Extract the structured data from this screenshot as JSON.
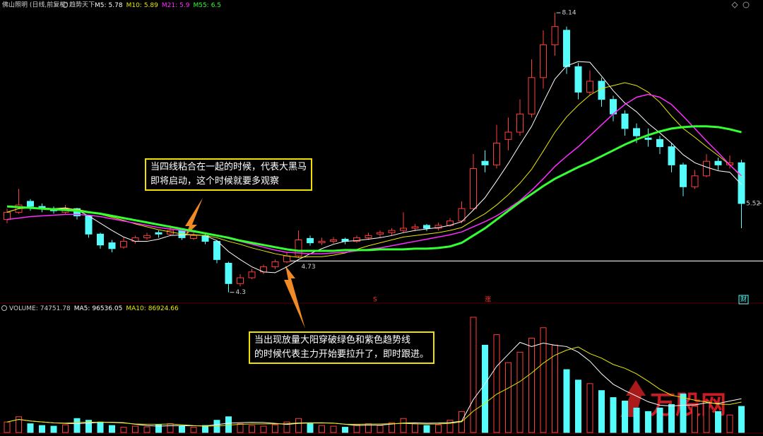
{
  "chart_data": [
    {
      "type": "candlestick",
      "title": "佛山照明 (日线,前复权)",
      "subtitle": "趋势天下",
      "ylim": [
        4.19,
        8.17
      ],
      "up_color": "#ff3c3c",
      "down_color": "#54fcfc",
      "hline": 4.73,
      "hline_color": "#bbbbbb",
      "open": [
        5.3,
        5.4,
        5.55,
        5.48,
        5.45,
        5.4,
        5.45,
        5.35,
        5.1,
        4.98,
        4.92,
        5.0,
        5.05,
        5.12,
        5.1,
        5.15,
        5.04,
        5.08,
        5.0,
        4.7,
        4.42,
        4.5,
        4.58,
        4.65,
        4.72,
        4.8,
        5.04,
        4.98,
        5.0,
        5.03,
        5.0,
        5.05,
        5.1,
        5.12,
        5.15,
        5.18,
        5.22,
        5.18,
        5.22,
        5.28,
        5.45,
        6.1,
        6.05,
        6.4,
        6.5,
        6.75,
        7.25,
        7.7,
        7.9,
        7.4,
        7.05,
        7.2,
        6.95,
        6.75,
        6.55,
        6.42,
        6.4,
        6.3,
        6.05,
        5.75,
        5.9,
        6.1,
        6.05,
        6.08
      ],
      "high": [
        5.45,
        5.72,
        5.58,
        5.52,
        5.48,
        5.5,
        5.46,
        5.36,
        5.12,
        5.02,
        5.05,
        5.08,
        5.12,
        5.15,
        5.22,
        5.17,
        5.12,
        5.1,
        5.02,
        4.72,
        4.55,
        4.62,
        4.68,
        4.75,
        4.85,
        5.15,
        5.08,
        5.05,
        5.06,
        5.05,
        5.08,
        5.12,
        5.15,
        5.18,
        5.4,
        5.24,
        5.24,
        5.26,
        5.32,
        5.55,
        6.2,
        6.25,
        6.6,
        6.7,
        6.95,
        7.5,
        7.9,
        8.14,
        7.95,
        7.45,
        7.35,
        7.25,
        7.0,
        6.8,
        6.62,
        6.55,
        6.45,
        6.35,
        6.08,
        5.98,
        6.2,
        6.15,
        6.18,
        6.12
      ],
      "low": [
        5.25,
        5.38,
        5.42,
        5.4,
        5.38,
        5.38,
        5.3,
        5.05,
        4.9,
        4.85,
        4.9,
        4.97,
        5.02,
        5.05,
        5.08,
        5.02,
        5.02,
        4.96,
        4.7,
        4.3,
        4.38,
        4.48,
        4.55,
        4.62,
        4.7,
        4.78,
        4.94,
        4.95,
        4.97,
        4.96,
        4.98,
        5.02,
        5.05,
        5.08,
        5.12,
        5.14,
        5.14,
        5.15,
        5.2,
        5.25,
        5.42,
        5.95,
        6.0,
        6.25,
        6.45,
        6.7,
        7.1,
        7.55,
        7.3,
        6.95,
        7.0,
        6.85,
        6.65,
        6.45,
        6.35,
        6.3,
        6.2,
        5.95,
        5.62,
        5.72,
        5.88,
        5.98,
        6.0,
        5.18
      ],
      "close": [
        5.4,
        5.5,
        5.48,
        5.45,
        5.42,
        5.45,
        5.35,
        5.1,
        4.95,
        4.9,
        5.0,
        5.05,
        5.08,
        5.1,
        5.15,
        5.05,
        5.08,
        5.0,
        4.75,
        4.42,
        4.5,
        4.58,
        4.65,
        4.72,
        4.8,
        5.02,
        4.98,
        5.0,
        5.02,
        5.0,
        5.05,
        5.08,
        5.12,
        5.15,
        5.18,
        5.2,
        5.18,
        5.22,
        5.28,
        5.45,
        6.0,
        6.05,
        6.35,
        6.5,
        6.75,
        7.25,
        7.7,
        7.95,
        7.4,
        7.05,
        7.2,
        6.95,
        6.75,
        6.55,
        6.45,
        6.4,
        6.3,
        6.05,
        5.75,
        5.9,
        6.1,
        6.05,
        6.08,
        5.52
      ],
      "lines": [
        {
          "name": "M5:",
          "current": 5.78,
          "color": "#ffffff",
          "width": 1,
          "values": [
            5.4,
            5.45,
            5.46,
            5.46,
            5.45,
            5.46,
            5.43,
            5.35,
            5.25,
            5.15,
            5.06,
            5.0,
            5.0,
            5.03,
            5.08,
            5.09,
            5.09,
            5.08,
            5.01,
            4.86,
            4.75,
            4.65,
            4.58,
            4.57,
            4.65,
            4.75,
            4.83,
            4.9,
            4.96,
            5.0,
            5.01,
            5.03,
            5.05,
            5.08,
            5.12,
            5.15,
            5.17,
            5.19,
            5.22,
            5.27,
            5.43,
            5.6,
            5.83,
            6.07,
            6.33,
            6.58,
            6.91,
            7.23,
            7.41,
            7.47,
            7.46,
            7.27,
            7.07,
            6.9,
            6.78,
            6.62,
            6.49,
            6.35,
            6.19,
            6.08,
            6.02,
            5.97,
            5.95,
            5.78
          ]
        },
        {
          "name": "M10:",
          "current": 5.89,
          "color": "#e8e800",
          "width": 1,
          "values": [
            5.4,
            5.45,
            5.46,
            5.46,
            5.45,
            5.45,
            5.44,
            5.41,
            5.37,
            5.33,
            5.29,
            5.24,
            5.2,
            5.16,
            5.13,
            5.1,
            5.09,
            5.08,
            5.05,
            5.0,
            4.96,
            4.91,
            4.87,
            4.83,
            4.8,
            4.78,
            4.79,
            4.79,
            4.81,
            4.84,
            4.89,
            4.94,
            4.98,
            5.02,
            5.06,
            5.08,
            5.1,
            5.12,
            5.15,
            5.19,
            5.29,
            5.38,
            5.5,
            5.64,
            5.8,
            5.99,
            6.24,
            6.5,
            6.71,
            6.87,
            7.01,
            7.1,
            7.14,
            7.18,
            7.14,
            7.05,
            6.91,
            6.72,
            6.55,
            6.43,
            6.3,
            6.18,
            6.05,
            5.89
          ]
        },
        {
          "name": "M21:",
          "current": 5.9,
          "color": "#ff2cff",
          "width": 1.5,
          "values": [
            5.3,
            5.32,
            5.34,
            5.35,
            5.36,
            5.37,
            5.37,
            5.36,
            5.34,
            5.31,
            5.28,
            5.25,
            5.22,
            5.19,
            5.17,
            5.15,
            5.13,
            5.11,
            5.08,
            5.04,
            5.0,
            4.96,
            4.92,
            4.88,
            4.85,
            4.84,
            4.83,
            4.83,
            4.84,
            4.85,
            4.87,
            4.89,
            4.91,
            4.94,
            4.97,
            5.0,
            5.03,
            5.06,
            5.09,
            5.13,
            5.2,
            5.27,
            5.35,
            5.45,
            5.56,
            5.7,
            5.86,
            6.03,
            6.17,
            6.3,
            6.45,
            6.6,
            6.75,
            6.88,
            6.98,
            7.02,
            6.98,
            6.88,
            6.72,
            6.55,
            6.38,
            6.22,
            6.05,
            5.9
          ]
        },
        {
          "name": "M55:",
          "current": 6.5,
          "color": "#33ff33",
          "width": 3,
          "values": [
            5.48,
            5.47,
            5.46,
            5.45,
            5.44,
            5.43,
            5.42,
            5.4,
            5.38,
            5.35,
            5.32,
            5.29,
            5.26,
            5.23,
            5.2,
            5.17,
            5.14,
            5.11,
            5.08,
            5.05,
            5.01,
            4.98,
            4.95,
            4.92,
            4.89,
            4.87,
            4.87,
            4.87,
            4.87,
            4.88,
            4.88,
            4.88,
            4.89,
            4.89,
            4.89,
            4.9,
            4.9,
            4.91,
            4.93,
            4.98,
            5.08,
            5.18,
            5.3,
            5.42,
            5.54,
            5.65,
            5.76,
            5.86,
            5.94,
            6.02,
            6.09,
            6.17,
            6.25,
            6.33,
            6.4,
            6.46,
            6.51,
            6.55,
            6.57,
            6.58,
            6.58,
            6.57,
            6.54,
            6.5
          ]
        }
      ],
      "events": [
        "S",
        "涨",
        "财"
      ],
      "annotations": [
        [
          "当四线粘合在一起的时候，代表大黑马",
          "即将启动，这个时候就要多观察"
        ],
        [
          "当出现放量大阳穿破绿色和紫色趋势线",
          "的时候代表主力开始要拉升了，即时跟进。"
        ]
      ],
      "watermark": "万股网"
    },
    {
      "type": "bar",
      "ylim": [
        0,
        342000
      ],
      "series": [
        {
          "name": "VOLUME:",
          "current": 74751.78,
          "values": [
            30000,
            45000,
            25000,
            20000,
            18000,
            22000,
            40000,
            35000,
            30000,
            20000,
            15000,
            18000,
            16000,
            22000,
            25000,
            18000,
            15000,
            20000,
            35000,
            45000,
            25000,
            20000,
            18000,
            22000,
            30000,
            40000,
            25000,
            20000,
            18000,
            15000,
            22000,
            25000,
            20000,
            28000,
            40000,
            25000,
            20000,
            22000,
            35000,
            60000,
            330000,
            250000,
            280000,
            200000,
            230000,
            270000,
            300000,
            250000,
            180000,
            150000,
            140000,
            120000,
            100000,
            90000,
            70000,
            60000,
            70000,
            80000,
            110000,
            75000,
            90000,
            60000,
            50000,
            74751.78
          ]
        }
      ],
      "lines": [
        {
          "name": "MA5:",
          "current": 96536.05,
          "color": "#ffffff",
          "width": 1,
          "values": [
            30000,
            37500,
            33000,
            30000,
            27600,
            26000,
            25000,
            27000,
            29000,
            29400,
            28000,
            23600,
            19800,
            18200,
            19200,
            19400,
            19200,
            18800,
            22600,
            26600,
            28000,
            29000,
            28600,
            26000,
            23000,
            26000,
            27000,
            27400,
            26600,
            23600,
            20000,
            21000,
            21000,
            24000,
            27000,
            27600,
            26600,
            27000,
            28400,
            32400,
            94400,
            139400,
            189400,
            224000,
            258000,
            246000,
            256000,
            250000,
            246000,
            230000,
            204000,
            168000,
            138000,
            120000,
            104000,
            88000,
            78000,
            76000,
            78000,
            79000,
            85000,
            83000,
            90000,
            96536.05
          ]
        },
        {
          "name": "MA10:",
          "current": 86924.66,
          "color": "#e8e800",
          "width": 1,
          "values": [
            30000,
            37500,
            33000,
            30000,
            27600,
            26800,
            28600,
            29400,
            29400,
            28500,
            27000,
            24300,
            23400,
            23600,
            24300,
            22100,
            19700,
            18200,
            18700,
            21100,
            23400,
            24300,
            24500,
            24500,
            25000,
            27500,
            27900,
            27800,
            26800,
            23800,
            23500,
            24000,
            24200,
            25100,
            26100,
            24600,
            24100,
            24300,
            26000,
            30500,
            61200,
            83700,
            109700,
            127000,
            146000,
            170500,
            198500,
            221300,
            235800,
            244800,
            225800,
            212800,
            194800,
            183800,
            167800,
            146800,
            123800,
            106800,
            99800,
            92300,
            87300,
            81300,
            80300,
            86924.66
          ]
        }
      ]
    }
  ]
}
